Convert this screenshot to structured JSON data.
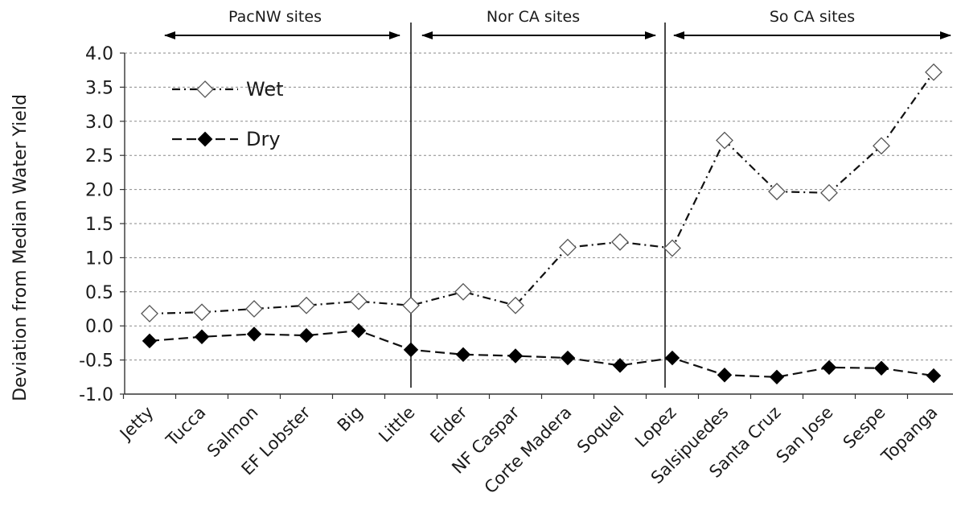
{
  "chart_data": {
    "type": "line",
    "title": "",
    "xlabel": "",
    "ylabel": "Deviation from Median Water Yield",
    "ylim": [
      -1.0,
      4.0
    ],
    "yticks": [
      "-1.0",
      "-0.5",
      "0.0",
      "0.5",
      "1.0",
      "1.5",
      "2.0",
      "2.5",
      "3.0",
      "3.5",
      "4.0"
    ],
    "grid": "horizontal dashed",
    "legend_position": "top-left",
    "categories": [
      "Jetty",
      "Tucca",
      "Salmon",
      "EF Lobster",
      "Big",
      "Little",
      "Elder",
      "NF Caspar",
      "Corte Madera",
      "Soquel",
      "Lopez",
      "Salsipuedes",
      "Santa Cruz",
      "San Jose",
      "Sespe",
      "Topanga"
    ],
    "series": [
      {
        "name": "Wet",
        "marker": "open-diamond",
        "line_style": "dash-dot",
        "values": [
          0.18,
          0.2,
          0.25,
          0.3,
          0.36,
          0.3,
          0.5,
          0.3,
          1.15,
          1.23,
          1.14,
          2.72,
          1.97,
          1.95,
          2.64,
          3.72
        ]
      },
      {
        "name": "Dry",
        "marker": "filled-diamond",
        "line_style": "dashed",
        "values": [
          -0.22,
          -0.16,
          -0.12,
          -0.14,
          -0.07,
          -0.35,
          -0.42,
          -0.44,
          -0.47,
          -0.58,
          -0.47,
          -0.72,
          -0.75,
          -0.61,
          -0.62,
          -0.73
        ]
      }
    ],
    "regions": [
      {
        "label": "PacNW sites"
      },
      {
        "label": "Nor CA sites"
      },
      {
        "label": "So CA sites"
      }
    ]
  }
}
